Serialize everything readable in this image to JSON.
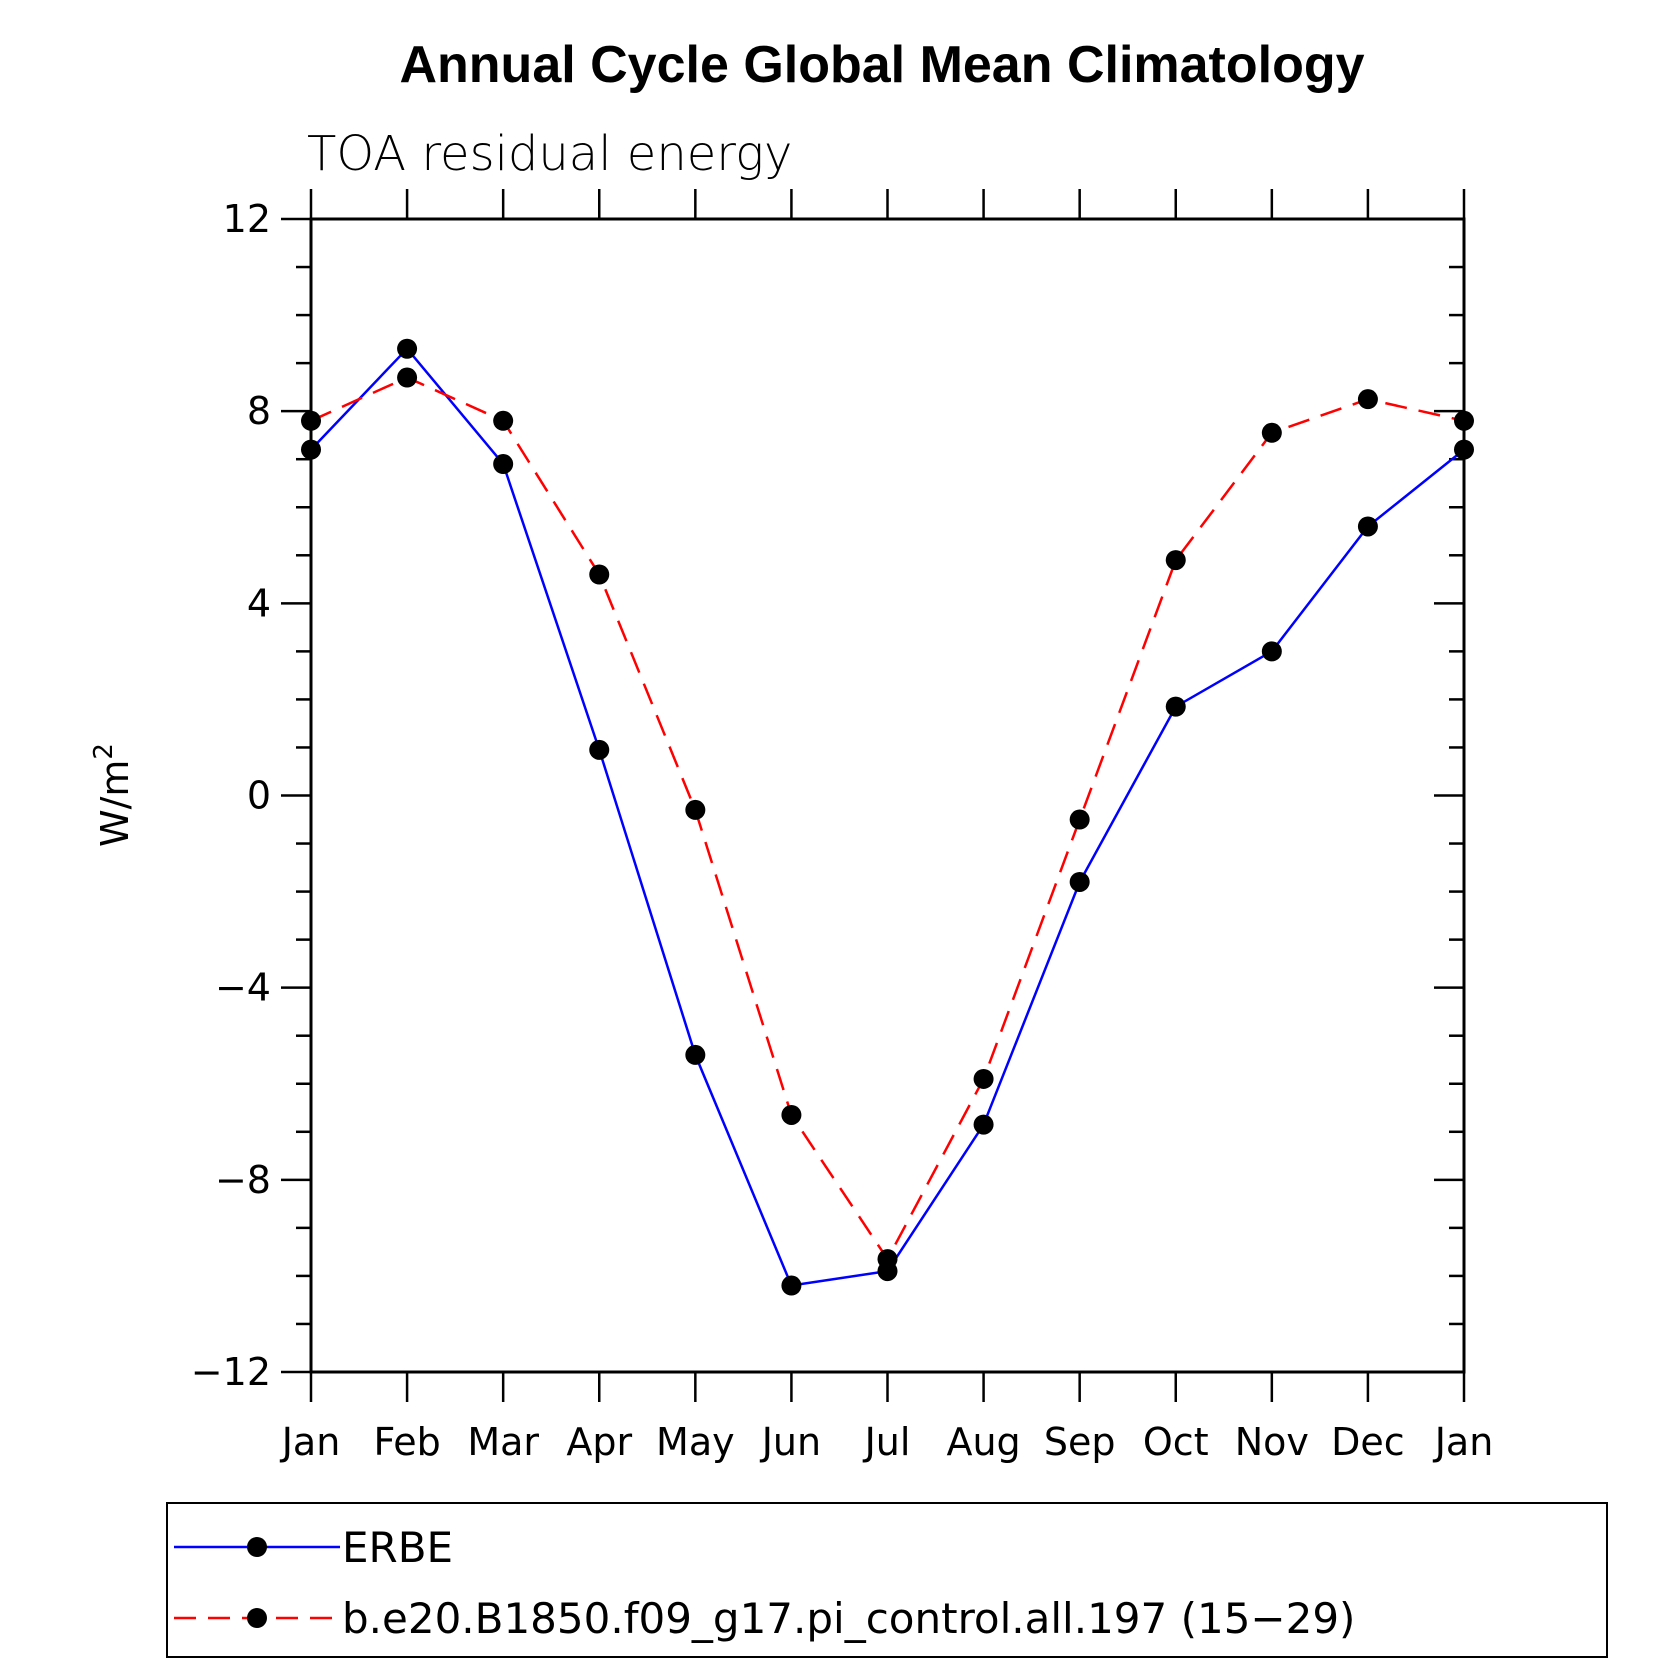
{
  "chart_data": {
    "type": "line",
    "title": "Annual Cycle Global Mean Climatology",
    "subtitle": "TOA residual energy",
    "ylabel": "W/m",
    "ylabel_superscript": "2",
    "xlabel": "",
    "ylim": [
      -12,
      12
    ],
    "yticks": [
      12,
      8,
      4,
      0,
      -4,
      -8,
      -12
    ],
    "y_tick_labels": [
      "12",
      "8",
      "4",
      "0",
      "−4",
      "−8",
      "−12"
    ],
    "categories": [
      "Jan",
      "Feb",
      "Mar",
      "Apr",
      "May",
      "Jun",
      "Jul",
      "Aug",
      "Sep",
      "Oct",
      "Nov",
      "Dec",
      "Jan"
    ],
    "grid": false,
    "legend_position": "bottom",
    "series": [
      {
        "name": "ERBE",
        "color": "#0000ff",
        "line_style": "solid",
        "marker": "filled-circle",
        "values": [
          7.2,
          9.3,
          6.9,
          0.95,
          -5.4,
          -10.2,
          -9.9,
          -6.85,
          -1.8,
          1.85,
          3.0,
          5.6,
          7.2
        ]
      },
      {
        "name": "b.e20.B1850.f09_g17.pi_control.all.197 (15−29)",
        "color": "#ff0000",
        "line_style": "dashed",
        "marker": "filled-circle",
        "values": [
          7.8,
          8.7,
          7.8,
          4.6,
          -0.3,
          -6.65,
          -9.65,
          -5.9,
          -0.5,
          4.9,
          7.55,
          8.25,
          7.8
        ]
      }
    ]
  }
}
